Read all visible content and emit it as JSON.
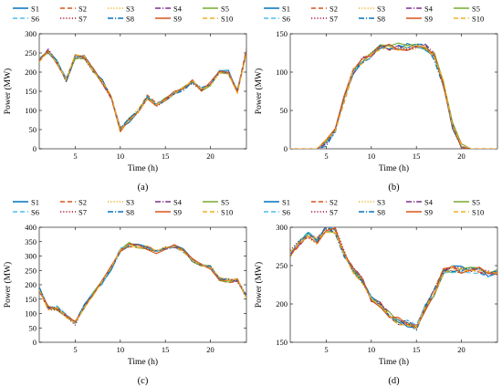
{
  "colors": [
    "#0072BD",
    "#D95319",
    "#EDB120",
    "#7E2F8E",
    "#77AC30",
    "#4DBEEE",
    "#A2142F",
    "#0072BD",
    "#D95319",
    "#EDB120"
  ],
  "line_styles": [
    "solid",
    "dashed",
    "dotted",
    "dashdot",
    "solid",
    "dashed",
    "dotted",
    "dashdot",
    "solid",
    "dashed"
  ],
  "legend_entries": [
    "S1",
    "S2",
    "S3",
    "S4",
    "S5",
    "S6",
    "S7",
    "S8",
    "S9",
    "S10"
  ],
  "chart_data": [
    {
      "type": "line",
      "caption": "(a)",
      "xlabel": "Time (h)",
      "ylabel": "Power (MW)",
      "xlim": [
        1,
        24
      ],
      "ylim": [
        0,
        300
      ],
      "xticks": [
        5,
        10,
        15,
        20
      ],
      "yticks": [
        0,
        50,
        100,
        150,
        200,
        250,
        300
      ],
      "legend": "top",
      "base": [
        232,
        255,
        225,
        180,
        240,
        240,
        205,
        175,
        135,
        50,
        75,
        100,
        135,
        115,
        130,
        145,
        155,
        175,
        155,
        170,
        200,
        200,
        150,
        255
      ],
      "amp": 6,
      "series": [
        {
          "name": "S1"
        },
        {
          "name": "S2"
        },
        {
          "name": "S3"
        },
        {
          "name": "S4"
        },
        {
          "name": "S5"
        },
        {
          "name": "S6"
        },
        {
          "name": "S7"
        },
        {
          "name": "S8"
        },
        {
          "name": "S9"
        },
        {
          "name": "S10"
        }
      ]
    },
    {
      "type": "line",
      "caption": "(b)",
      "xlabel": "Time (h)",
      "ylabel": "Power (MW)",
      "xlim": [
        1,
        24
      ],
      "ylim": [
        0,
        150
      ],
      "xticks": [
        5,
        10,
        15,
        20
      ],
      "yticks": [
        0,
        50,
        100,
        150
      ],
      "legend": "top",
      "base": [
        0,
        0,
        0,
        0,
        8,
        22,
        65,
        100,
        115,
        122,
        132,
        133,
        133,
        133,
        132,
        132,
        120,
        85,
        30,
        5,
        0,
        0,
        0,
        0
      ],
      "amp": 5,
      "series": [
        {
          "name": "S1"
        },
        {
          "name": "S2"
        },
        {
          "name": "S3"
        },
        {
          "name": "S4"
        },
        {
          "name": "S5"
        },
        {
          "name": "S6"
        },
        {
          "name": "S7"
        },
        {
          "name": "S8"
        },
        {
          "name": "S9"
        },
        {
          "name": "S10"
        }
      ]
    },
    {
      "type": "line",
      "caption": "(c)",
      "xlabel": "Time (h)",
      "ylabel": "Power (MW)",
      "xlim": [
        1,
        24
      ],
      "ylim": [
        0,
        400
      ],
      "xticks": [
        5,
        10,
        15,
        20
      ],
      "yticks": [
        0,
        50,
        100,
        150,
        200,
        250,
        300,
        350,
        400
      ],
      "legend": "top",
      "base": [
        185,
        120,
        118,
        90,
        65,
        125,
        170,
        210,
        260,
        320,
        340,
        335,
        330,
        315,
        325,
        335,
        320,
        285,
        265,
        260,
        220,
        215,
        215,
        160
      ],
      "amp": 8,
      "series": [
        {
          "name": "S1"
        },
        {
          "name": "S2"
        },
        {
          "name": "S3"
        },
        {
          "name": "S4"
        },
        {
          "name": "S5"
        },
        {
          "name": "S6"
        },
        {
          "name": "S7"
        },
        {
          "name": "S8"
        },
        {
          "name": "S9"
        },
        {
          "name": "S10"
        }
      ]
    },
    {
      "type": "line",
      "caption": "(d)",
      "xlabel": "Time (h)",
      "ylabel": "Power (MW)",
      "xlim": [
        1,
        24
      ],
      "ylim": [
        150,
        300
      ],
      "xticks": [
        5,
        10,
        15,
        20
      ],
      "yticks": [
        150,
        200,
        250,
        300
      ],
      "legend": "top",
      "base": [
        265,
        280,
        290,
        282,
        298,
        295,
        265,
        245,
        230,
        205,
        198,
        185,
        178,
        175,
        170,
        195,
        215,
        242,
        245,
        245,
        245,
        243,
        240,
        240
      ],
      "amp": 5,
      "series": [
        {
          "name": "S1"
        },
        {
          "name": "S2"
        },
        {
          "name": "S3"
        },
        {
          "name": "S4"
        },
        {
          "name": "S5"
        },
        {
          "name": "S6"
        },
        {
          "name": "S7"
        },
        {
          "name": "S8"
        },
        {
          "name": "S9"
        },
        {
          "name": "S10"
        }
      ]
    }
  ]
}
